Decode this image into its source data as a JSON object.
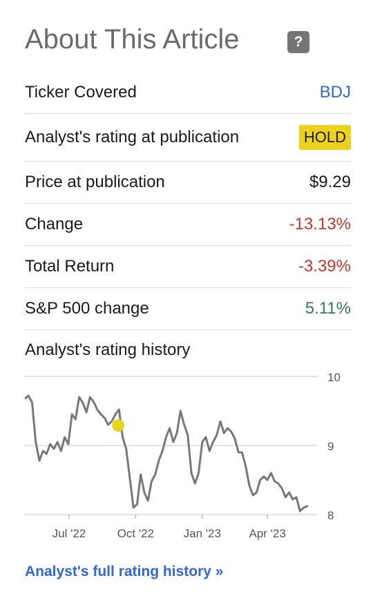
{
  "header": {
    "title": "About This Article",
    "help_icon": "question-mark-icon",
    "help_glyph": "?"
  },
  "rows": [
    {
      "label": "Ticker Covered",
      "value": "BDJ",
      "style": "link"
    },
    {
      "label": "Analyst's rating at publication",
      "value": "HOLD",
      "style": "badge"
    },
    {
      "label": "Price at publication",
      "value": "$9.29",
      "style": "plain"
    },
    {
      "label": "Change",
      "value": "-13.13%",
      "style": "neg"
    },
    {
      "label": "Total Return",
      "value": "-3.39%",
      "style": "neg"
    },
    {
      "label": "S&P 500 change",
      "value": "5.11%",
      "style": "pos"
    }
  ],
  "history": {
    "label": "Analyst's rating history",
    "full_link": "Analyst's full rating history »"
  },
  "colors": {
    "link": "#2f68d8",
    "negative": "#c0392b",
    "positive": "#2e7d4f",
    "hold_badge": "#ecd21a",
    "line": "#777777",
    "marker": "#e8d21a",
    "grid": "#dcdcdc"
  },
  "chart_data": {
    "type": "line",
    "ylim": [
      8,
      10
    ],
    "yticks": [
      10,
      9,
      8
    ],
    "ytick_labels": [
      "10",
      "9",
      "8"
    ],
    "xticks": [
      "2022-07-01",
      "2022-10-01",
      "2023-01-01",
      "2023-04-01"
    ],
    "xtick_labels": [
      "Jul '22",
      "Oct '22",
      "Jan '23",
      "Apr '23"
    ],
    "x_range": [
      "2022-05-01",
      "2023-05-31"
    ],
    "grid": true,
    "series": [
      {
        "points": [
          [
            "2022-05-01",
            9.68
          ],
          [
            "2022-05-06",
            9.72
          ],
          [
            "2022-05-11",
            9.62
          ],
          [
            "2022-05-16",
            9.05
          ],
          [
            "2022-05-21",
            8.78
          ],
          [
            "2022-05-26",
            8.92
          ],
          [
            "2022-05-31",
            8.88
          ],
          [
            "2022-06-05",
            9.02
          ],
          [
            "2022-06-10",
            8.95
          ],
          [
            "2022-06-15",
            9.05
          ],
          [
            "2022-06-20",
            8.92
          ],
          [
            "2022-06-25",
            9.12
          ],
          [
            "2022-06-30",
            9.02
          ],
          [
            "2022-07-05",
            9.45
          ],
          [
            "2022-07-10",
            9.38
          ],
          [
            "2022-07-15",
            9.7
          ],
          [
            "2022-07-20",
            9.62
          ],
          [
            "2022-07-25",
            9.48
          ],
          [
            "2022-07-30",
            9.7
          ],
          [
            "2022-08-04",
            9.63
          ],
          [
            "2022-08-09",
            9.52
          ],
          [
            "2022-08-14",
            9.45
          ],
          [
            "2022-08-19",
            9.4
          ],
          [
            "2022-08-24",
            9.3
          ],
          [
            "2022-08-29",
            9.35
          ],
          [
            "2022-09-03",
            9.45
          ],
          [
            "2022-09-08",
            9.52
          ],
          [
            "2022-09-13",
            9.12
          ],
          [
            "2022-09-18",
            8.95
          ],
          [
            "2022-09-23",
            8.52
          ],
          [
            "2022-09-28",
            8.1
          ],
          [
            "2022-10-03",
            8.15
          ],
          [
            "2022-10-08",
            8.58
          ],
          [
            "2022-10-13",
            8.32
          ],
          [
            "2022-10-18",
            8.2
          ],
          [
            "2022-10-23",
            8.48
          ],
          [
            "2022-10-28",
            8.58
          ],
          [
            "2022-11-02",
            8.78
          ],
          [
            "2022-11-07",
            8.92
          ],
          [
            "2022-11-12",
            9.12
          ],
          [
            "2022-11-17",
            9.25
          ],
          [
            "2022-11-22",
            9.05
          ],
          [
            "2022-11-27",
            9.18
          ],
          [
            "2022-12-02",
            9.5
          ],
          [
            "2022-12-07",
            9.3
          ],
          [
            "2022-12-12",
            9.15
          ],
          [
            "2022-12-17",
            8.6
          ],
          [
            "2022-12-22",
            8.45
          ],
          [
            "2022-12-27",
            8.6
          ],
          [
            "2023-01-01",
            9.05
          ],
          [
            "2023-01-06",
            9.12
          ],
          [
            "2023-01-11",
            8.92
          ],
          [
            "2023-01-16",
            9.05
          ],
          [
            "2023-01-21",
            9.15
          ],
          [
            "2023-01-26",
            9.35
          ],
          [
            "2023-01-31",
            9.18
          ],
          [
            "2023-02-05",
            9.25
          ],
          [
            "2023-02-10",
            9.2
          ],
          [
            "2023-02-15",
            9.1
          ],
          [
            "2023-02-20",
            8.9
          ],
          [
            "2023-02-25",
            8.9
          ],
          [
            "2023-03-02",
            8.7
          ],
          [
            "2023-03-07",
            8.42
          ],
          [
            "2023-03-12",
            8.28
          ],
          [
            "2023-03-17",
            8.32
          ],
          [
            "2023-03-22",
            8.5
          ],
          [
            "2023-03-27",
            8.55
          ],
          [
            "2023-04-01",
            8.5
          ],
          [
            "2023-04-06",
            8.6
          ],
          [
            "2023-04-11",
            8.48
          ],
          [
            "2023-04-16",
            8.45
          ],
          [
            "2023-04-21",
            8.38
          ],
          [
            "2023-04-26",
            8.25
          ],
          [
            "2023-05-01",
            8.32
          ],
          [
            "2023-05-06",
            8.22
          ],
          [
            "2023-05-11",
            8.25
          ],
          [
            "2023-05-16",
            8.05
          ],
          [
            "2023-05-21",
            8.1
          ],
          [
            "2023-05-26",
            8.12
          ]
        ]
      }
    ],
    "markers": [
      {
        "date": "2022-09-07",
        "value": 9.29,
        "rating": "HOLD"
      }
    ]
  }
}
